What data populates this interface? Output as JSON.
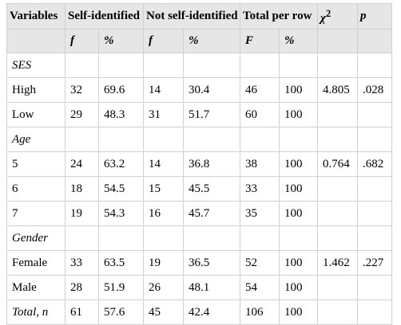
{
  "table": {
    "headers": {
      "variables": "Variables",
      "self_identified": "Self-identified",
      "not_self_identified": "Not self-identified",
      "total_per_row": "Total per row",
      "chi2_base": "χ",
      "chi2_sup": "2",
      "p": "p"
    },
    "subheaders": [
      "f",
      "%",
      "f",
      "%",
      "F",
      "%"
    ],
    "groups": [
      {
        "label": "SES",
        "rows": [
          {
            "label": "High",
            "cells": [
              "32",
              "69.6",
              "14",
              "30.4",
              "46",
              "100",
              "4.805",
              ".028"
            ]
          },
          {
            "label": "Low",
            "cells": [
              "29",
              "48.3",
              "31",
              "51.7",
              "60",
              "100",
              "",
              ""
            ]
          }
        ]
      },
      {
        "label": "Age",
        "rows": [
          {
            "label": "5",
            "cells": [
              "24",
              "63.2",
              "14",
              "36.8",
              "38",
              "100",
              "0.764",
              ".682"
            ]
          },
          {
            "label": "6",
            "cells": [
              "18",
              "54.5",
              "15",
              "45.5",
              "33",
              "100",
              "",
              ""
            ]
          },
          {
            "label": "7",
            "cells": [
              "19",
              "54.3",
              "16",
              "45.7",
              "35",
              "100",
              "",
              ""
            ]
          }
        ]
      },
      {
        "label": "Gender",
        "rows": [
          {
            "label": "Female",
            "cells": [
              "33",
              "63.5",
              "19",
              "36.5",
              "52",
              "100",
              "1.462",
              ".227"
            ]
          },
          {
            "label": "Male",
            "cells": [
              "28",
              "51.9",
              "26",
              "48.1",
              "54",
              "100",
              "",
              ""
            ]
          }
        ]
      }
    ],
    "total": {
      "label": "Total, n",
      "cells": [
        "61",
        "57.6",
        "45",
        "42.4",
        "106",
        "100",
        "",
        ""
      ]
    }
  }
}
